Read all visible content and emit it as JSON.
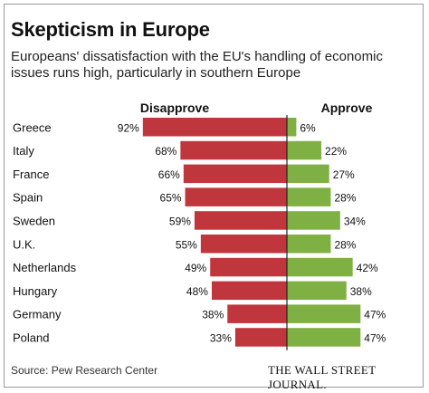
{
  "chart_data": {
    "type": "bar",
    "title": "Skepticism in Europe",
    "subtitle": "Europeans' dissatisfaction with the EU's handling of economic issues runs high, particularly in southern Europe",
    "categories": [
      "Greece",
      "Italy",
      "France",
      "Spain",
      "Sweden",
      "U.K.",
      "Netherlands",
      "Hungary",
      "Germany",
      "Poland"
    ],
    "series": [
      {
        "name": "Disapprove",
        "values": [
          92,
          68,
          66,
          65,
          59,
          55,
          49,
          48,
          38,
          33
        ],
        "color": "#c0363d"
      },
      {
        "name": "Approve",
        "values": [
          6,
          22,
          27,
          28,
          34,
          28,
          42,
          38,
          47,
          47
        ],
        "color": "#7fb043"
      }
    ],
    "value_suffix": "%",
    "grid": false,
    "legend": "top"
  },
  "source": "Source: Pew Research Center",
  "publisher": "THE WALL STREET JOURNAL."
}
